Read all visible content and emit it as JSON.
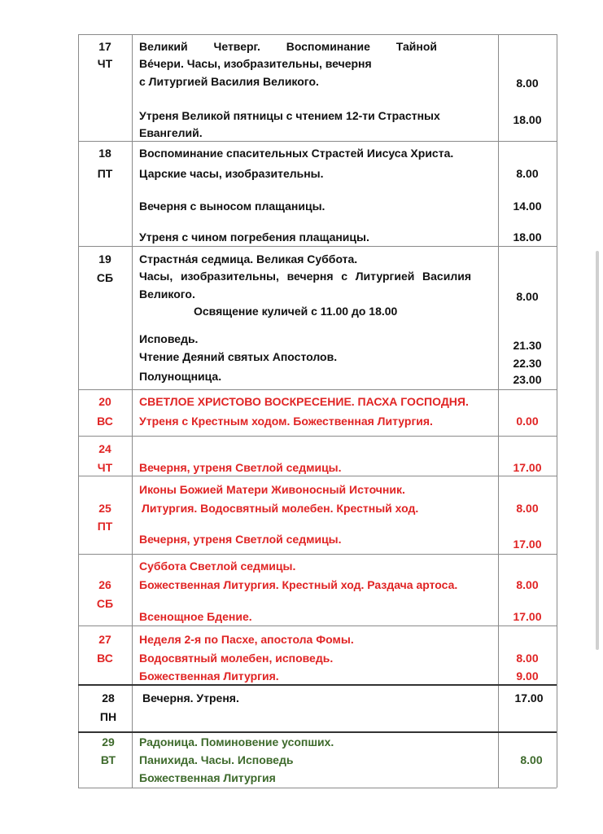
{
  "colors": {
    "text": "#111111",
    "red": "#e02424",
    "green": "#3e6a2c",
    "grid": "#8a8a8a"
  },
  "rows": [
    {
      "day": "17",
      "weekday": "ЧТ",
      "lines": [
        "Великий Четверг. Воспоминание Тайной",
        "Ве́чери. Часы, изобразительны, вечерня",
        "с Литургией Василия Великого.",
        "Утреня Великой пятницы с чтением 12-ти Страстных",
        "Евангелий."
      ],
      "times": [
        "8.00",
        "18.00"
      ]
    },
    {
      "day": "18",
      "weekday": "ПТ",
      "lines": [
        "Воспоминание спасительных Страстей Иисуса Христа.",
        "Царские часы, изобразительны.",
        "Вечерня с выносом плащаницы.",
        "Утреня с чином погребения плащаницы."
      ],
      "times": [
        "8.00",
        "14.00",
        "18.00"
      ]
    },
    {
      "day": "19",
      "weekday": "СБ",
      "lines": [
        "Страстна́я седмица. Великая Суббота.",
        "Часы, изобразительны, вечерня с Литургией Василия",
        "Великого.",
        "Освящение куличей с 11.00 до 18.00",
        "Исповедь.",
        "Чтение Деяний святых Апостолов.",
        "Полунощница."
      ],
      "times": [
        "8.00",
        "21.30",
        "22.30",
        "23.00"
      ]
    },
    {
      "day": "20",
      "weekday": "ВС",
      "lines": [
        "СВЕТЛОЕ ХРИСТОВО ВОСКРЕСЕНИЕ. ПАСХА ГОСПОДНЯ.",
        "Утреня с Крестным ходом. Божественная Литургия."
      ],
      "times": [
        "0.00"
      ]
    },
    {
      "day": "24",
      "weekday": "ЧТ",
      "lines": [
        "Вечерня, утреня Светлой седмицы."
      ],
      "times": [
        "17.00"
      ]
    },
    {
      "day": "25",
      "weekday": "ПТ",
      "lines": [
        "Иконы Божией Матери Живоносный Источник.",
        "Литургия. Водосвятный молебен. Крестный ход.",
        "Вечерня, утреня Светлой седмицы."
      ],
      "times": [
        "8.00",
        "17.00"
      ]
    },
    {
      "day": "26",
      "weekday": "СБ",
      "lines": [
        "Суббота Светлой седмицы.",
        "Божественная Литургия. Крестный ход. Раздача артоса.",
        "Всенощное Бдение."
      ],
      "times": [
        "8.00",
        "17.00"
      ]
    },
    {
      "day": "27",
      "weekday": "ВС",
      "lines": [
        "Неделя 2-я по Пасхе, апостола Фомы.",
        "Водосвятный молебен, исповедь.",
        "Божественная Литургия."
      ],
      "times": [
        "8.00",
        "9.00"
      ]
    },
    {
      "day": "28",
      "weekday": "ПН",
      "lines": [
        "Вечерня. Утреня."
      ],
      "times": [
        "17.00"
      ]
    },
    {
      "day": "29",
      "weekday": "ВТ",
      "lines": [
        "Радоница. Поминовение усопших.",
        "Панихида. Часы. Исповедь",
        "Божественная Литургия"
      ],
      "times": [
        "8.00"
      ]
    }
  ]
}
